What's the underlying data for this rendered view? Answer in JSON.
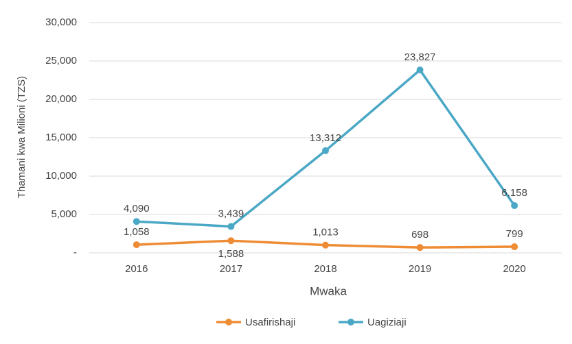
{
  "chart_data": {
    "type": "line",
    "categories": [
      "2016",
      "2017",
      "2018",
      "2019",
      "2020"
    ],
    "series": [
      {
        "name": "Usafirishaji",
        "color": "#ee8c36",
        "values": [
          1058,
          1588,
          1013,
          698,
          799
        ],
        "value_labels": [
          "1,058",
          "1,588",
          "1,013",
          "698",
          "799"
        ]
      },
      {
        "name": "Uagiziaji",
        "color": "#4aa8c6",
        "values": [
          4090,
          3439,
          13312,
          23827,
          6158
        ],
        "value_labels": [
          "4,090",
          "3,439",
          "13,312",
          "23,827",
          "6,158"
        ]
      }
    ],
    "xlabel": "Mwaka",
    "ylabel": "Thamani kwa Milioni (TZS)",
    "ylim": [
      0,
      30000
    ],
    "yticks": [
      {
        "value": 0,
        "label": "-"
      },
      {
        "value": 5000,
        "label": "5,000"
      },
      {
        "value": 10000,
        "label": "10,000"
      },
      {
        "value": 15000,
        "label": "15,000"
      },
      {
        "value": 20000,
        "label": "20,000"
      },
      {
        "value": 25000,
        "label": "25,000"
      },
      {
        "value": 30000,
        "label": "30,000"
      }
    ],
    "grid": true,
    "legend": "bottom"
  }
}
